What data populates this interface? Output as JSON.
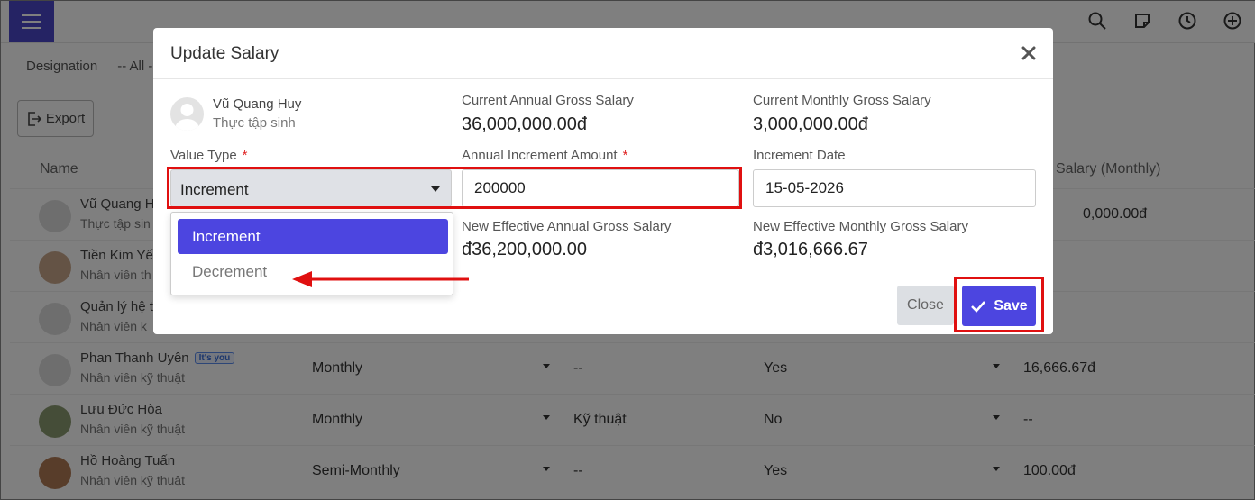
{
  "background": {
    "filter_label": "Designation",
    "filter_value": "-- All -",
    "export_label": "Export",
    "table_headers": {
      "name": "Name",
      "salary_monthly": "Salary (Monthly)"
    },
    "rows": [
      {
        "name": "Vũ Quang H",
        "role": "Thực tập sin",
        "pay_cycle": "",
        "department": "",
        "active": "",
        "salary": "0,000.00đ"
      },
      {
        "name": "Tiền Kim Yến",
        "role": "Nhân viên th",
        "pay_cycle": "",
        "department": "",
        "active": "",
        "salary": ""
      },
      {
        "name": "Quản lý hệ t",
        "role": "Nhân viên k",
        "pay_cycle": "",
        "department": "",
        "active": "",
        "salary": ""
      },
      {
        "name": "Phan Thanh Uyên",
        "badge": "It's you",
        "role": "Nhân viên kỹ thuật",
        "pay_cycle": "Monthly",
        "department": "--",
        "active": "Yes",
        "salary": "16,666.67đ"
      },
      {
        "name": "Lưu Đức Hòa",
        "role": "Nhân viên kỹ thuật",
        "pay_cycle": "Monthly",
        "department": "Kỹ thuật",
        "active": "No",
        "salary": "--"
      },
      {
        "name": "Hồ Hoàng Tuấn",
        "role": "Nhân viên kỹ thuật",
        "pay_cycle": "Semi-Monthly",
        "department": "--",
        "active": "Yes",
        "salary": "100.00đ"
      }
    ]
  },
  "modal": {
    "title": "Update Salary",
    "employee": {
      "name": "Vũ Quang Huy",
      "role": "Thực tập sinh"
    },
    "current_annual_label": "Current Annual Gross Salary",
    "current_annual_value": "36,000,000.00đ",
    "current_monthly_label": "Current Monthly Gross Salary",
    "current_monthly_value": "3,000,000.00đ",
    "value_type_label": "Value Type",
    "value_type_selected": "Increment",
    "value_type_options": [
      "Increment",
      "Decrement"
    ],
    "increment_amount_label": "Annual Increment Amount",
    "increment_amount_value": "200000",
    "increment_date_label": "Increment Date",
    "increment_date_value": "15-05-2026",
    "new_annual_label": "New Effective Annual Gross Salary",
    "new_annual_value": "đ36,200,000.00",
    "new_monthly_label": "New Effective Monthly Gross Salary",
    "new_monthly_value": "đ3,016,666.67",
    "required_mark": "*",
    "close_label": "Close",
    "save_label": "Save"
  },
  "colors": {
    "accent": "#4c45e0",
    "annotation": "#e01010",
    "hamburger": "#4b46c8"
  }
}
